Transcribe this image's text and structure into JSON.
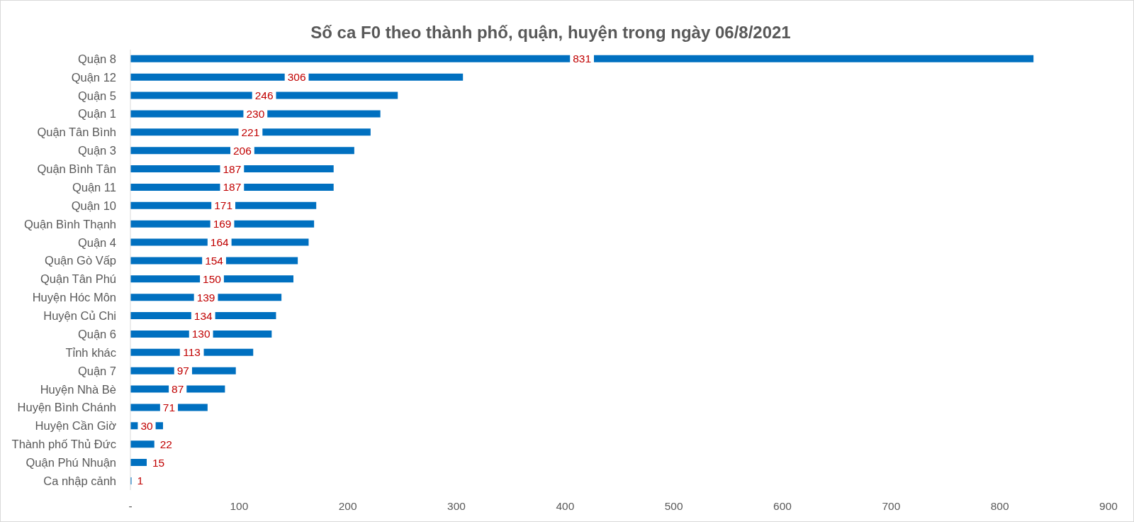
{
  "chart_data": {
    "type": "bar",
    "orientation": "horizontal",
    "title": "Số ca F0 theo thành phố, quận, huyện trong ngày 06/8/2021",
    "categories": [
      "Quận 8",
      "Quận 12",
      "Quận 5",
      "Quận 1",
      "Quận Tân Bình",
      "Quận 3",
      "Quận Bình Tân",
      "Quận 11",
      "Quận 10",
      "Quận Bình Thạnh",
      "Quận 4",
      "Quận Gò Vấp",
      "Quận Tân Phú",
      "Huyện Hóc Môn",
      "Huyện Củ Chi",
      "Quận 6",
      "Tỉnh khác",
      "Quận 7",
      "Huyện Nhà Bè",
      "Huyện Bình Chánh",
      "Huyện Cần Giờ",
      "Thành phố Thủ Đức",
      "Quận Phú Nhuận",
      "Ca nhập cảnh"
    ],
    "values": [
      831,
      306,
      246,
      230,
      221,
      206,
      187,
      187,
      171,
      169,
      164,
      154,
      150,
      139,
      134,
      130,
      113,
      97,
      87,
      71,
      30,
      22,
      15,
      1
    ],
    "color": "#0070c0",
    "xlim": [
      0,
      900
    ],
    "xticks": [
      {
        "value": 0,
        "label": "-"
      },
      100,
      200,
      300,
      400,
      500,
      600,
      700,
      800,
      900
    ],
    "data_labels": true
  }
}
